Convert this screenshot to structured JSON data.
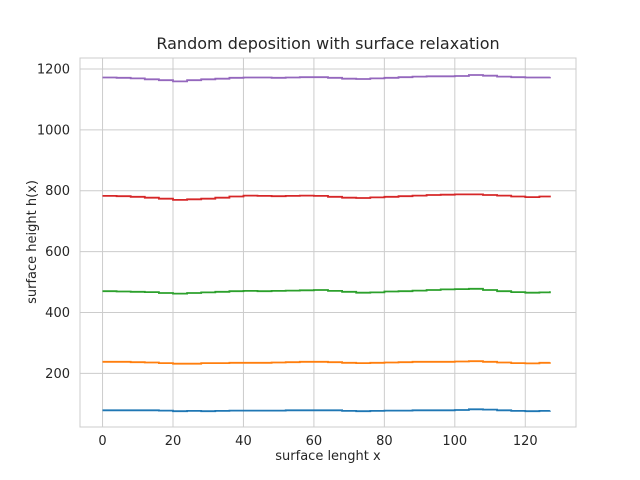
{
  "chart_data": {
    "type": "line",
    "title": "Random deposition with surface relaxation",
    "xlabel": "surface lenght x",
    "ylabel": "surface height h(x)",
    "xlim": [
      -6.4,
      134.4
    ],
    "ylim": [
      24,
      1236
    ],
    "xticks": [
      0,
      20,
      40,
      60,
      80,
      100,
      120
    ],
    "yticks": [
      200,
      400,
      600,
      800,
      1000,
      1200
    ],
    "grid": true,
    "legend": "none",
    "x": [
      0,
      4,
      8,
      12,
      16,
      20,
      24,
      28,
      32,
      36,
      40,
      44,
      48,
      52,
      56,
      60,
      64,
      68,
      72,
      76,
      80,
      84,
      88,
      92,
      96,
      100,
      104,
      108,
      112,
      116,
      120,
      124,
      127
    ],
    "series": [
      {
        "color": "#1f77b4",
        "values": [
          79,
          79,
          79,
          79,
          78,
          76,
          77,
          76,
          77,
          78,
          78,
          78,
          78,
          79,
          79,
          79,
          79,
          77,
          76,
          77,
          78,
          78,
          79,
          79,
          79,
          80,
          82,
          81,
          79,
          77,
          76,
          77,
          78
        ]
      },
      {
        "color": "#ff7f0e",
        "values": [
          238,
          238,
          237,
          236,
          234,
          232,
          232,
          234,
          234,
          235,
          235,
          235,
          236,
          237,
          238,
          238,
          237,
          235,
          234,
          235,
          236,
          237,
          238,
          238,
          238,
          239,
          240,
          238,
          236,
          234,
          233,
          235,
          237
        ]
      },
      {
        "color": "#2ca02c",
        "values": [
          470,
          469,
          468,
          467,
          464,
          462,
          464,
          466,
          468,
          470,
          471,
          470,
          471,
          472,
          473,
          474,
          471,
          468,
          465,
          466,
          469,
          470,
          472,
          474,
          476,
          477,
          478,
          474,
          470,
          467,
          465,
          466,
          470
        ]
      },
      {
        "color": "#d62728",
        "values": [
          783,
          782,
          780,
          777,
          774,
          770,
          772,
          774,
          777,
          781,
          784,
          783,
          782,
          783,
          784,
          783,
          780,
          777,
          776,
          778,
          780,
          782,
          784,
          786,
          787,
          788,
          788,
          786,
          784,
          781,
          779,
          781,
          784
        ]
      },
      {
        "color": "#9467bd",
        "values": [
          1172,
          1171,
          1169,
          1166,
          1163,
          1159,
          1163,
          1166,
          1168,
          1171,
          1172,
          1172,
          1171,
          1172,
          1173,
          1173,
          1171,
          1168,
          1167,
          1169,
          1171,
          1173,
          1175,
          1176,
          1176,
          1177,
          1180,
          1178,
          1175,
          1173,
          1172,
          1172,
          1174
        ]
      }
    ]
  }
}
